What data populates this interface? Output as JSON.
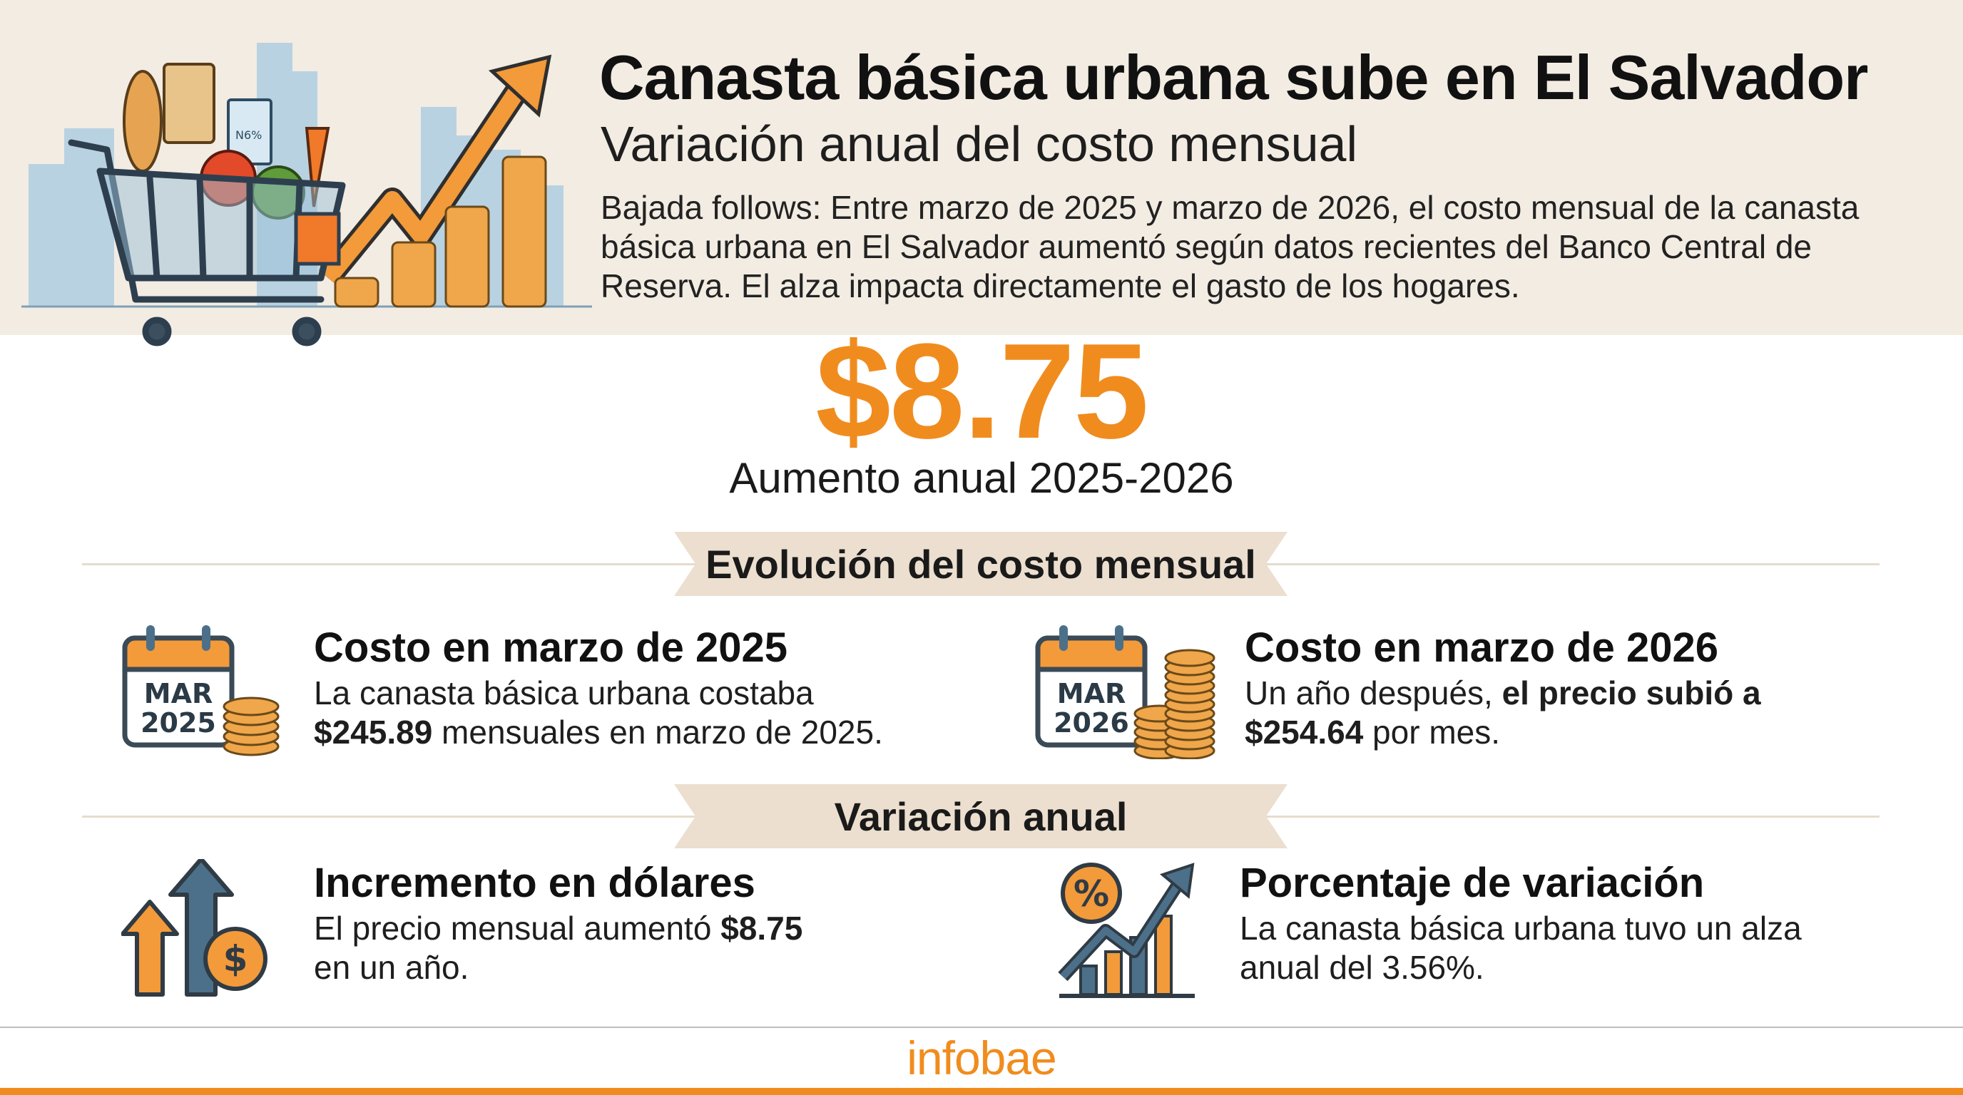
{
  "header": {
    "title": "Canasta básica urbana sube en El Salvador",
    "subtitle": "Variación anual del costo mensual",
    "lede": "Bajada follows: Entre marzo de 2025 y marzo de 2026, el costo mensual de la canasta básica urbana en El Salvador aumentó según datos recientes del Banco Central de Reserva. El alza impacta directamente el gasto de los hogares.",
    "milk_label": "N6%",
    "illustration_icon": "shopping-cart-rising-arrow-coins-illustration"
  },
  "highlight": {
    "value": "$8.75",
    "caption": "Aumento anual 2025-2026"
  },
  "sections": {
    "evolution": "Evolución del costo mensual",
    "variation": "Variación anual"
  },
  "cards": {
    "march2025": {
      "title": "Costo en marzo de 2025",
      "line1": "La canasta básica urbana costaba",
      "line2_bold": "$245.89",
      "line2_rest": " mensuales en marzo de 2025.",
      "cal_month": "MAR",
      "cal_year": "2025",
      "icon": "calendar-coins-icon"
    },
    "march2026": {
      "title": "Costo en marzo de 2026",
      "line1_plain": "Un año después, ",
      "line1_bold": "el precio subió a",
      "line2_bold": "$254.64",
      "line2_rest": " por mes.",
      "cal_month": "MAR",
      "cal_year": "2026",
      "icon": "calendar-coins-icon"
    },
    "increase": {
      "title": "Incremento en dólares",
      "line1_plain": "El precio mensual aumentó ",
      "line1_bold": "$8.75",
      "line2": "en un año.",
      "icon": "up-arrows-dollar-coin-icon"
    },
    "percentage": {
      "title": "Porcentaje de variación",
      "line1": "La canasta básica urbana tuvo un alza",
      "line2": "anual del 3.56%.",
      "icon": "percent-rising-bar-chart-icon"
    }
  },
  "footer": {
    "logo": "infobae"
  },
  "colors": {
    "accent": "#f08c1e",
    "band": "#f3ece2",
    "ribbon": "#ecdfcf",
    "slate": "#4c7089"
  }
}
